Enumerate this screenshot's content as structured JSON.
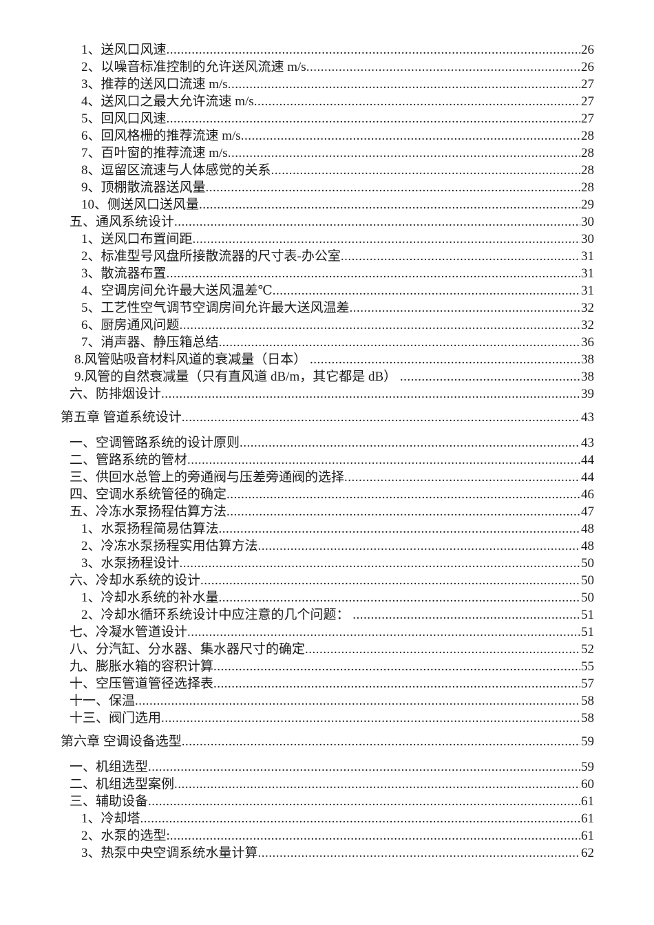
{
  "page": {
    "background": "#ffffff",
    "text_color": "#1b1b1b"
  },
  "toc": {
    "entries": [
      {
        "level": 3,
        "title": "1、送风口风速",
        "page": "26"
      },
      {
        "level": 3,
        "title": "2、以噪音标准控制的允许送风流速 m/s",
        "page": "26"
      },
      {
        "level": 3,
        "title": "3、推荐的送风口流速 m/s",
        "page": "27"
      },
      {
        "level": 3,
        "title": "4、送风口之最大允许流速 m/s",
        "page": "27"
      },
      {
        "level": 3,
        "title": "5、回风口风速",
        "page": "27"
      },
      {
        "level": 3,
        "title": "6、回风格栅的推荐流速 m/s",
        "page": "28"
      },
      {
        "level": 3,
        "title": "7、百叶窗的推荐流速 m/s",
        "page": "28"
      },
      {
        "level": 3,
        "title": "8、逗留区流速与人体感觉的关系",
        "page": "28"
      },
      {
        "level": 3,
        "title": "9、顶棚散流器送风量",
        "page": "28"
      },
      {
        "level": 3,
        "title": "10、侧送风口送风量",
        "page": "29"
      },
      {
        "level": 2,
        "title": "五、通风系统设计",
        "page": "30"
      },
      {
        "level": 3,
        "title": "1、送风口布置间距",
        "page": "30"
      },
      {
        "level": 3,
        "title": "2、标准型号风盘所接散流器的尺寸表-办公室",
        "page": "31"
      },
      {
        "level": 3,
        "title": "3、散流器布置",
        "page": "31"
      },
      {
        "level": 3,
        "title": "4、空调房间允许最大送风温差℃",
        "page": "31"
      },
      {
        "level": 3,
        "title": "5、工艺性空气调节空调房间允许最大送风温差",
        "page": "32"
      },
      {
        "level": 3,
        "title": "6、厨房通风问题",
        "page": "32"
      },
      {
        "level": 3,
        "title": "7、消声器、静压箱总结",
        "page": "36"
      },
      {
        "level": 3,
        "title": "8.风管贴吸音材料风道的衰减量（日本） ",
        "page": "38"
      },
      {
        "level": 3,
        "title": "9.风管的自然衰减量（只有直风道 dB/m，其它都是 dB） ",
        "page": "38"
      },
      {
        "level": 2,
        "title": "六、防排烟设计",
        "page": "39"
      },
      {
        "level": 1,
        "title": "第五章 管道系统设计",
        "page": "43"
      },
      {
        "level": 2,
        "title": "一、空调管路系统的设计原则",
        "page": "43"
      },
      {
        "level": 2,
        "title": "二、管路系统的管材",
        "page": "44"
      },
      {
        "level": 2,
        "title": "三、供回水总管上的旁通阀与压差旁通阀的选择",
        "page": "44"
      },
      {
        "level": 2,
        "title": "四、空调水系统管径的确定",
        "page": "46"
      },
      {
        "level": 2,
        "title": "五、冷冻水泵扬程估算方法",
        "page": "47"
      },
      {
        "level": 3,
        "title": "1、水泵扬程简易估算法",
        "page": "48"
      },
      {
        "level": 3,
        "title": "2、冷冻水泵扬程实用估算方法",
        "page": "48"
      },
      {
        "level": 3,
        "title": "3、水泵扬程设计",
        "page": "50"
      },
      {
        "level": 2,
        "title": "六、冷却水系统的设计",
        "page": "50"
      },
      {
        "level": 3,
        "title": "1、冷却水系统的补水量",
        "page": "50"
      },
      {
        "level": 3,
        "title": "2、冷却水循环系统设计中应注意的几个问题： ",
        "page": "51"
      },
      {
        "level": 2,
        "title": "七、冷凝水管道设计",
        "page": "51"
      },
      {
        "level": 2,
        "title": "八、分汽缸、分水器、集水器尺寸的确定",
        "page": "52"
      },
      {
        "level": 2,
        "title": "九、膨胀水箱的容积计算",
        "page": "55"
      },
      {
        "level": 2,
        "title": "十、空压管道管径选择表",
        "page": "57"
      },
      {
        "level": 2,
        "title": "十一、保温",
        "page": "58"
      },
      {
        "level": 2,
        "title": "十三、阀门选用",
        "page": "58"
      },
      {
        "level": 1,
        "title": "第六章 空调设备选型",
        "page": "59"
      },
      {
        "level": 2,
        "title": "一、机组选型",
        "page": "59"
      },
      {
        "level": 2,
        "title": "二、机组选型案例",
        "page": "60"
      },
      {
        "level": 2,
        "title": "三、辅助设备",
        "page": "61"
      },
      {
        "level": 3,
        "title": "1、冷却塔",
        "page": "61"
      },
      {
        "level": 3,
        "title": "2、水泵的选型:",
        "page": "61"
      },
      {
        "level": 3,
        "title": "3、热泵中央空调系统水量计算",
        "page": "62"
      }
    ]
  }
}
